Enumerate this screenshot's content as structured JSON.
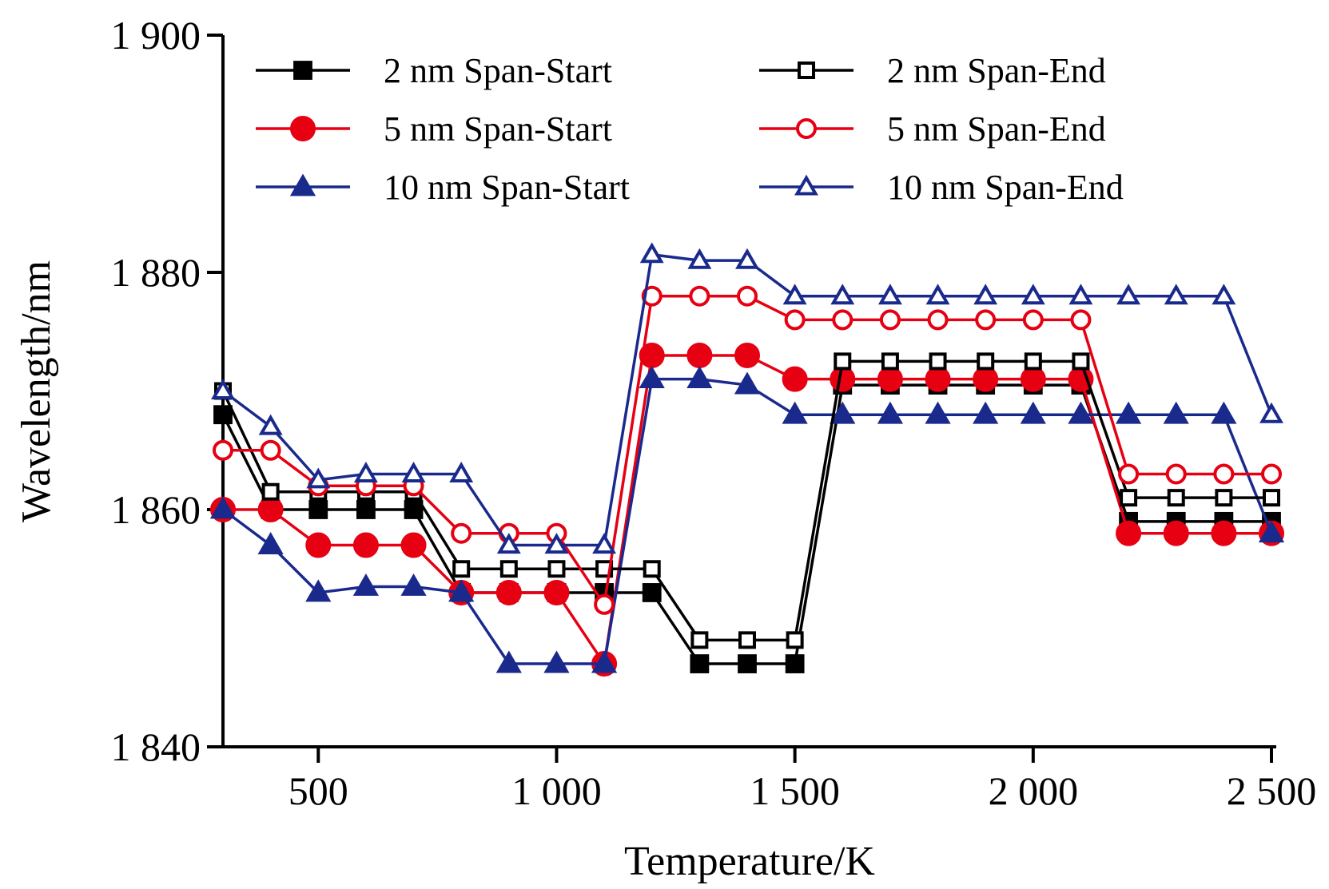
{
  "chart_data": {
    "type": "line",
    "title": "",
    "xlabel": "Temperature/K",
    "ylabel": "Wavelength/nm",
    "xlim": [
      300,
      2500
    ],
    "ylim": [
      1840,
      1900
    ],
    "x_ticks": [
      500,
      1000,
      1500,
      2000,
      2500
    ],
    "x_tick_labels": [
      "500",
      "1 000",
      "1 500",
      "2 000",
      "2 500"
    ],
    "y_ticks": [
      1840,
      1860,
      1880,
      1900
    ],
    "y_tick_labels": [
      "1 840",
      "1 860",
      "1 880",
      "1 900"
    ],
    "grid": false,
    "legend_position": "top",
    "x": [
      300,
      400,
      500,
      600,
      700,
      800,
      900,
      1000,
      1100,
      1200,
      1300,
      1400,
      1500,
      1600,
      1700,
      1800,
      1900,
      2000,
      2100,
      2200,
      2300,
      2400,
      2500
    ],
    "series": [
      {
        "name": "2 nm Span-Start",
        "color": "#000000",
        "marker": "square",
        "filled": true,
        "values": [
          1868,
          1860,
          1860,
          1860,
          1860,
          1853,
          1853,
          1853,
          1853,
          1853,
          1847,
          1847,
          1847,
          1870.5,
          1870.5,
          1870.5,
          1870.5,
          1870.5,
          1870.5,
          1859,
          1859,
          1859,
          1859
        ]
      },
      {
        "name": "5 nm Span-Start",
        "color": "#e60012",
        "marker": "circle",
        "filled": true,
        "values": [
          1860,
          1860,
          1857,
          1857,
          1857,
          1853,
          1853,
          1853,
          1847,
          1873,
          1873,
          1873,
          1871,
          1871,
          1871,
          1871,
          1871,
          1871,
          1871,
          1858,
          1858,
          1858,
          1858
        ]
      },
      {
        "name": "10 nm Span-Start",
        "color": "#1a2a8c",
        "marker": "triangle",
        "filled": true,
        "values": [
          1860,
          1857,
          1853,
          1853.5,
          1853.5,
          1853,
          1847,
          1847,
          1847,
          1871,
          1871,
          1870.5,
          1868,
          1868,
          1868,
          1868,
          1868,
          1868,
          1868,
          1868,
          1868,
          1868,
          1858
        ]
      },
      {
        "name": "2 nm Span-End",
        "color": "#000000",
        "marker": "square",
        "filled": false,
        "values": [
          1870,
          1861.5,
          1861.5,
          1861.5,
          1861.5,
          1855,
          1855,
          1855,
          1855,
          1855,
          1849,
          1849,
          1849,
          1872.5,
          1872.5,
          1872.5,
          1872.5,
          1872.5,
          1872.5,
          1861,
          1861,
          1861,
          1861
        ]
      },
      {
        "name": "5 nm Span-End",
        "color": "#e60012",
        "marker": "circle",
        "filled": false,
        "values": [
          1865,
          1865,
          1862,
          1862,
          1862,
          1858,
          1858,
          1858,
          1852,
          1878,
          1878,
          1878,
          1876,
          1876,
          1876,
          1876,
          1876,
          1876,
          1876,
          1863,
          1863,
          1863,
          1863
        ]
      },
      {
        "name": "10 nm Span-End",
        "color": "#1a2a8c",
        "marker": "triangle",
        "filled": false,
        "values": [
          1870,
          1867,
          1862.5,
          1863,
          1863,
          1863,
          1857,
          1857,
          1857,
          1881.5,
          1881,
          1881,
          1878,
          1878,
          1878,
          1878,
          1878,
          1878,
          1878,
          1878,
          1878,
          1878,
          1868
        ]
      }
    ],
    "legend_order": [
      0,
      3,
      1,
      4,
      2,
      5
    ]
  }
}
